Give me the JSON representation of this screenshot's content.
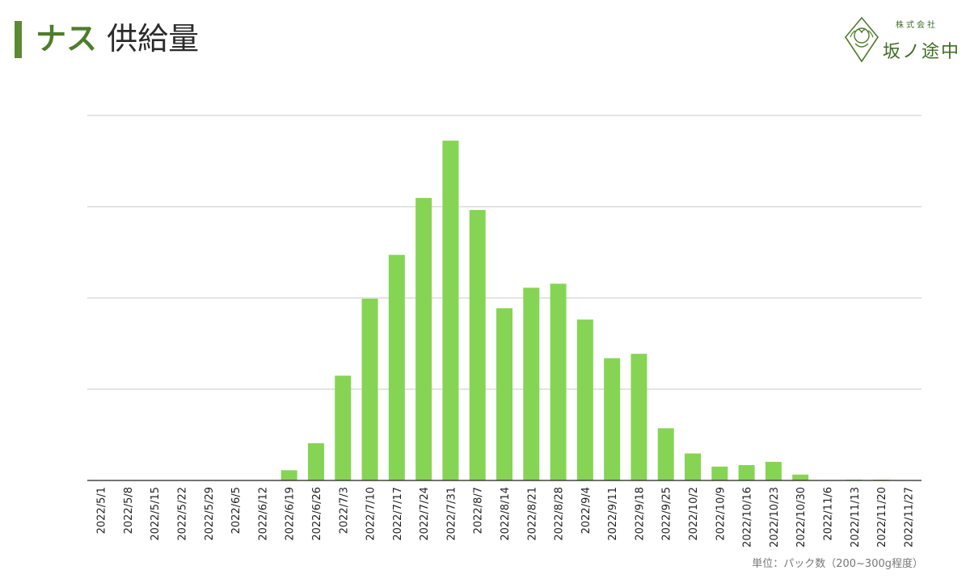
{
  "header": {
    "title_accent": "ナス",
    "title_rest": "供給量"
  },
  "logo": {
    "company_type": "株式会社",
    "company_name": "坂ノ途中"
  },
  "colors": {
    "bar": "#86d454",
    "title_bar": "#5c8a33",
    "gridline": "#c8c8c8",
    "axis": "#222222"
  },
  "chart_data": {
    "type": "bar",
    "title": "",
    "xlabel": "",
    "ylabel": "",
    "unit_note": "単位：パック数（200~300g程度）",
    "ylim": [
      0,
      100
    ],
    "gridlines": [
      0,
      25,
      50,
      75,
      100
    ],
    "grid": true,
    "legend": "none",
    "categories": [
      "2022/5/1",
      "2022/5/8",
      "2022/5/15",
      "2022/5/22",
      "2022/5/29",
      "2022/6/5",
      "2022/6/12",
      "2022/6/19",
      "2022/6/26",
      "2022/7/3",
      "2022/7/10",
      "2022/7/17",
      "2022/7/24",
      "2022/7/31",
      "2022/8/7",
      "2022/8/14",
      "2022/8/21",
      "2022/8/28",
      "2022/9/4",
      "2022/9/11",
      "2022/9/18",
      "2022/9/25",
      "2022/10/2",
      "2022/10/9",
      "2022/10/16",
      "2022/10/23",
      "2022/10/30",
      "2022/11/6",
      "2022/11/13",
      "2022/11/20",
      "2022/11/27"
    ],
    "values": [
      0,
      0,
      0,
      0,
      0,
      0,
      0,
      2.8,
      10.2,
      28.7,
      49.8,
      61.8,
      77.4,
      93.1,
      74.1,
      47.2,
      52.8,
      53.9,
      44.1,
      33.5,
      34.7,
      14.3,
      7.4,
      3.8,
      4.2,
      5.1,
      1.6,
      0.1,
      0.2,
      0.2,
      0
    ]
  }
}
